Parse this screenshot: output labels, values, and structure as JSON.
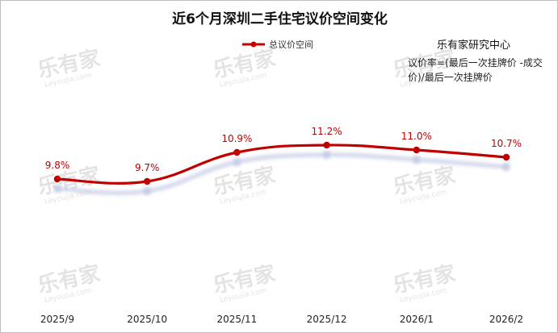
{
  "chart_data": {
    "type": "line",
    "title": "近6个月深圳二手住宅议价空间变化",
    "categories": [
      "2025/9",
      "2025/10",
      "2025/11",
      "2025/12",
      "2026/1",
      "2026/2"
    ],
    "series": [
      {
        "name": "总议价空间",
        "values": [
          9.8,
          9.7,
          10.9,
          11.2,
          11.0,
          10.7
        ],
        "data_labels": [
          "9.8%",
          "9.7%",
          "10.9%",
          "11.2%",
          "11.0%",
          "10.7%"
        ],
        "color": "#c00000"
      }
    ],
    "xlabel": "",
    "ylabel": "",
    "ylim": [
      5,
      14
    ],
    "grid": false,
    "legend_position": "top-center",
    "annotations": {
      "source": "乐有家研究中心",
      "note": "议价率=(最后一次挂牌价 -成交价)/最后一次挂牌价"
    }
  },
  "watermark": {
    "text": "乐有家",
    "subtext": "Leyoujia.com"
  }
}
